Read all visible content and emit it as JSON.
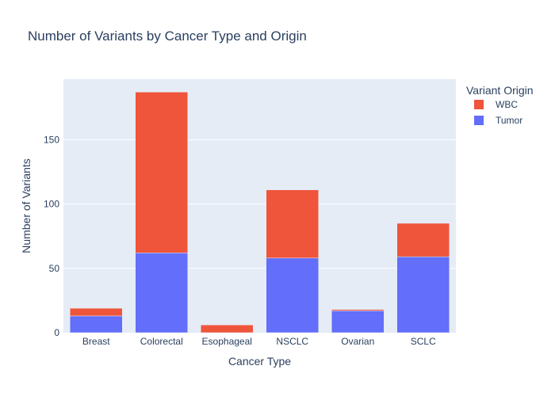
{
  "chart_data": {
    "type": "bar",
    "stacked": true,
    "title": "Number of Variants by Cancer Type and Origin",
    "xlabel": "Cancer Type",
    "ylabel": "Number of Variants",
    "categories": [
      "Breast",
      "Colorectal",
      "Esophageal",
      "NSCLC",
      "Ovarian",
      "SCLC"
    ],
    "series": [
      {
        "name": "Tumor",
        "color": "#636efa",
        "values": [
          13,
          62,
          0,
          58,
          17,
          59
        ]
      },
      {
        "name": "WBC",
        "color": "#ef553b",
        "values": [
          6,
          125,
          6,
          53,
          1,
          26
        ]
      }
    ],
    "legend": {
      "title": "Variant Origin",
      "order": [
        "WBC",
        "Tumor"
      ],
      "placement": "top-right, outside plot"
    },
    "ylim": [
      0,
      197
    ],
    "yticks": [
      0,
      50,
      100,
      150
    ],
    "grid": true,
    "plot_background": "#e5ecf6"
  }
}
